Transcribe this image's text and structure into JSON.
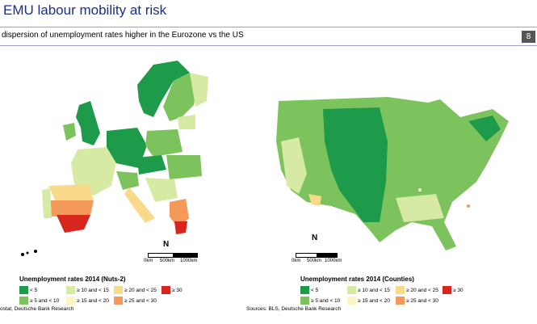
{
  "header": {
    "title": "EMU labour mobility at risk",
    "subtitle": "dispersion of unemployment rates higher in the Eurozone vs the US",
    "page_number": "8"
  },
  "colors": {
    "lt5": "#1e9a4b",
    "5to10": "#7cc35e",
    "10to15": "#d6eaa3",
    "15to20": "#fbf5c2",
    "20to25": "#f9d98a",
    "25to30": "#f39a5a",
    "ge30": "#d7261e"
  },
  "maps": {
    "europe": {
      "legend_title": "Unemployment rates 2014 (Nuts-2)",
      "legend_items": [
        "< 5",
        "≥ 10 and < 15",
        "≥ 20 and < 25",
        "≥ 30",
        "≥ 5 and < 10",
        "≥ 15 and < 20",
        "≥ 25 and < 30"
      ],
      "north_label": "N",
      "scale_labels": [
        "0km",
        "500km",
        "1000km"
      ],
      "source": "ostat, Deutsche Bank Research"
    },
    "us": {
      "legend_title": "Unemployment rates 2014 (Counties)",
      "legend_items": [
        "< 5",
        "≥ 10 and < 15",
        "≥ 20 and < 25",
        "≥ 30",
        "≥ 5 and < 10",
        "≥ 15 and < 20",
        "≥ 25 and < 30"
      ],
      "north_label": "N",
      "scale_labels": [
        "0km",
        "500km",
        "1000km"
      ],
      "source": "Sources: BLS, Deutsche Bank Research"
    }
  }
}
